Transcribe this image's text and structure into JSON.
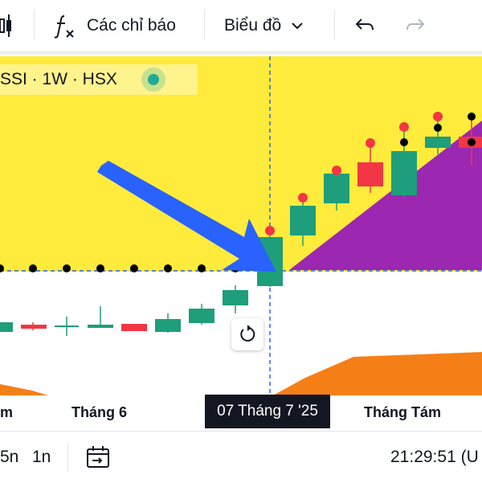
{
  "toolbar": {
    "indicators_label": "Các chỉ báo",
    "chart_type_label": "Biểu đồ"
  },
  "symbol": {
    "legend": "SSI · 1W · HSX",
    "status_color": "#22ab94"
  },
  "xaxis": {
    "labels": [
      "m",
      "Tháng 6",
      "Tháng Tám"
    ],
    "crosshair_date": "07 Tháng 7 '25"
  },
  "bottom_bar": {
    "range_5n": "5n",
    "range_1n": "1n",
    "clock": "21:29:51 (U"
  },
  "colors": {
    "up": "#1e9e7a",
    "down": "#f23645",
    "kijun_fill": "#ffeb3b",
    "cloud_purple": "#9c27b0",
    "cloud_orange": "#f57f17",
    "arrow": "#2962ff",
    "crosshair": "#2962ff"
  }
}
